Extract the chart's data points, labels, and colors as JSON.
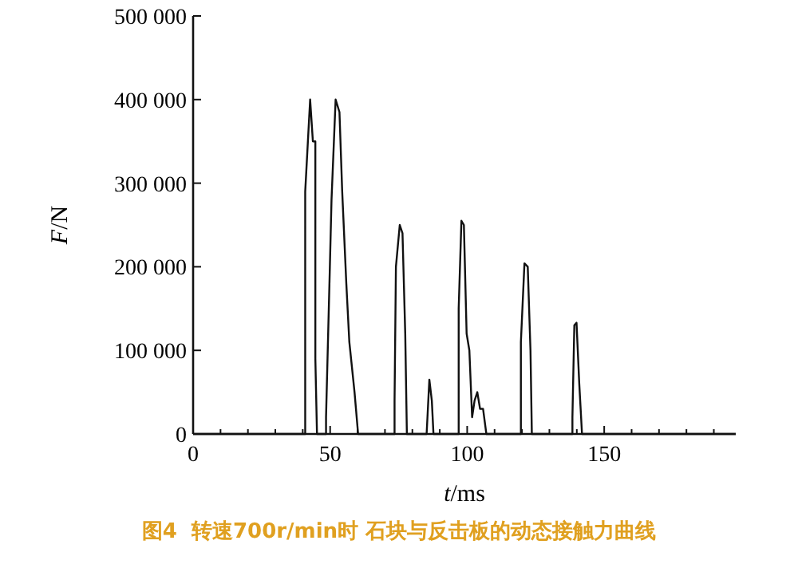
{
  "chart_data": {
    "type": "line",
    "xlabel": "t/ms",
    "ylabel": "F/N",
    "x": [
      0,
      40.9,
      40.9,
      42.7,
      43.7,
      44.6,
      44.6,
      45.2,
      48.5,
      48.5,
      49.9,
      50.5,
      52,
      53.4,
      54.4,
      55.9,
      57,
      58.9,
      60.2,
      73.5,
      73.5,
      74,
      75.4,
      76.4,
      77.4,
      78,
      85.2,
      86.2,
      87.1,
      87.7,
      96.9,
      96.9,
      97.9,
      98.8,
      99.8,
      100.8,
      101.8,
      102.7,
      103.7,
      104.7,
      105.8,
      107,
      119.6,
      119.6,
      120.9,
      122.1,
      123.1,
      123.6,
      138.4,
      138.4,
      139.1,
      139.9,
      140.9,
      141.9,
      198
    ],
    "series": [
      {
        "color": "#111111",
        "values": [
          0,
          0,
          290000,
          400000,
          350000,
          350000,
          90000,
          0,
          0,
          20000,
          200000,
          280000,
          400000,
          385000,
          290000,
          180000,
          110000,
          50000,
          0,
          0,
          40000,
          200000,
          250000,
          240000,
          120000,
          0,
          0,
          65000,
          40000,
          0,
          0,
          150000,
          255000,
          250000,
          120000,
          100000,
          20000,
          40000,
          50000,
          30000,
          30000,
          0,
          0,
          110000,
          204000,
          200000,
          100000,
          0,
          0,
          20000,
          130000,
          133000,
          60000,
          0,
          0
        ]
      }
    ],
    "xlim": [
      0,
      198
    ],
    "ylim": [
      0,
      500000
    ],
    "xticks": [
      0,
      {
        "value": 10,
        "label": null
      },
      {
        "value": 20,
        "label": null
      },
      {
        "value": 30,
        "label": null
      },
      {
        "value": 40,
        "label": null
      },
      50,
      {
        "value": 60,
        "label": null
      },
      {
        "value": 70,
        "label": null
      },
      {
        "value": 80,
        "label": null
      },
      {
        "value": 90,
        "label": null
      },
      100,
      {
        "value": 110,
        "label": null
      },
      {
        "value": 120,
        "label": null
      },
      {
        "value": 130,
        "label": null
      },
      {
        "value": 140,
        "label": null
      },
      150,
      {
        "value": 160,
        "label": null
      },
      {
        "value": 170,
        "label": null
      },
      {
        "value": 180,
        "label": null
      },
      {
        "value": 190,
        "label": null
      }
    ],
    "yticks": [
      0,
      {
        "value": 100000,
        "label": "100 000"
      },
      {
        "value": 200000,
        "label": "200 000"
      },
      {
        "value": 300000,
        "label": "300 000"
      },
      {
        "value": 400000,
        "label": "400 000"
      },
      {
        "value": 500000,
        "label": "500 000"
      }
    ],
    "grid": false,
    "line_style": "solid",
    "annotations": [
      "图4  转速700r/min时 石块与反击板的动态接触力曲线"
    ]
  }
}
